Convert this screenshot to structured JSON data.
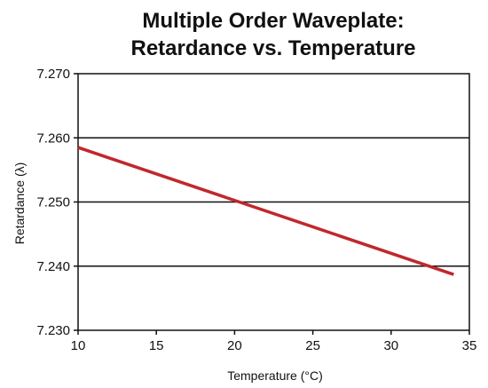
{
  "chart_data": {
    "type": "line",
    "title": [
      "Multiple Order Waveplate:",
      "Retardance vs. Temperature"
    ],
    "xlabel": "Temperature (°C)",
    "ylabel": "Retardance (λ)",
    "xlim": [
      10,
      35
    ],
    "ylim": [
      7.23,
      7.27
    ],
    "x_ticks": [
      10,
      15,
      20,
      25,
      30,
      35
    ],
    "y_ticks": [
      7.23,
      7.24,
      7.25,
      7.26,
      7.27
    ],
    "x_tick_labels": [
      "10",
      "15",
      "20",
      "25",
      "30",
      "35"
    ],
    "y_tick_labels": [
      "7.230",
      "7.240",
      "7.250",
      "7.260",
      "7.270"
    ],
    "grid": "horizontal",
    "series": [
      {
        "color": "#c0282d",
        "x": [
          10,
          34
        ],
        "y": [
          7.2585,
          7.2387
        ]
      }
    ]
  }
}
